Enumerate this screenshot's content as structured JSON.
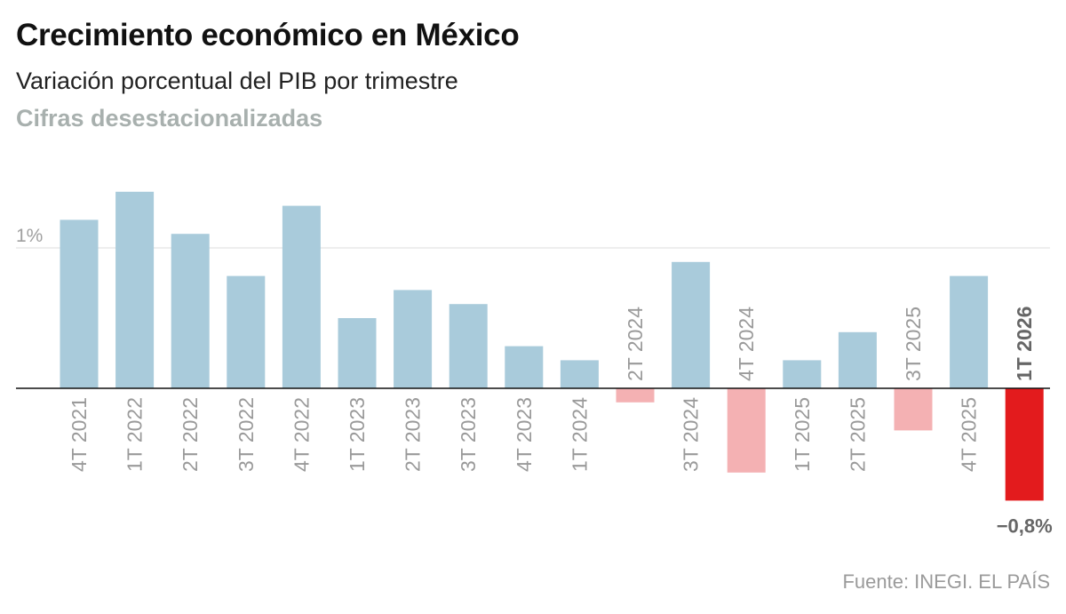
{
  "title": "Crecimiento económico en México",
  "subtitle": "Variación porcentual del PIB por trimestre",
  "subtitle2": "Cifras desestacionalizadas",
  "source": "Fuente: INEGI. EL PAÍS",
  "chart_data": {
    "type": "bar",
    "categories": [
      "4T 2021",
      "1T 2022",
      "2T 2022",
      "3T 2022",
      "4T 2022",
      "1T 2023",
      "2T 2023",
      "3T 2023",
      "4T 2023",
      "1T 2024",
      "2T 2024",
      "3T 2024",
      "4T 2024",
      "1T 2025",
      "2T 2025",
      "3T 2025",
      "4T 2025",
      "1T 2026"
    ],
    "values": [
      1.2,
      1.4,
      1.1,
      0.8,
      1.3,
      0.5,
      0.7,
      0.6,
      0.3,
      0.2,
      -0.1,
      0.9,
      -0.6,
      0.2,
      0.4,
      -0.3,
      0.8,
      -0.8
    ],
    "ylim": [
      -0.8,
      1.4
    ],
    "yticks": [
      {
        "value": 1,
        "label": "1%"
      }
    ],
    "highlight": {
      "category": "1T 2026",
      "value_label": "−0,8%"
    },
    "colors": {
      "positive": "#a9cbdb",
      "negative": "#f4b1b3",
      "highlight": "#e31b1d",
      "grid": "#dcdcdc",
      "axis": "#111111",
      "label": "#9a9a9a",
      "highlight_label": "#666666"
    }
  }
}
